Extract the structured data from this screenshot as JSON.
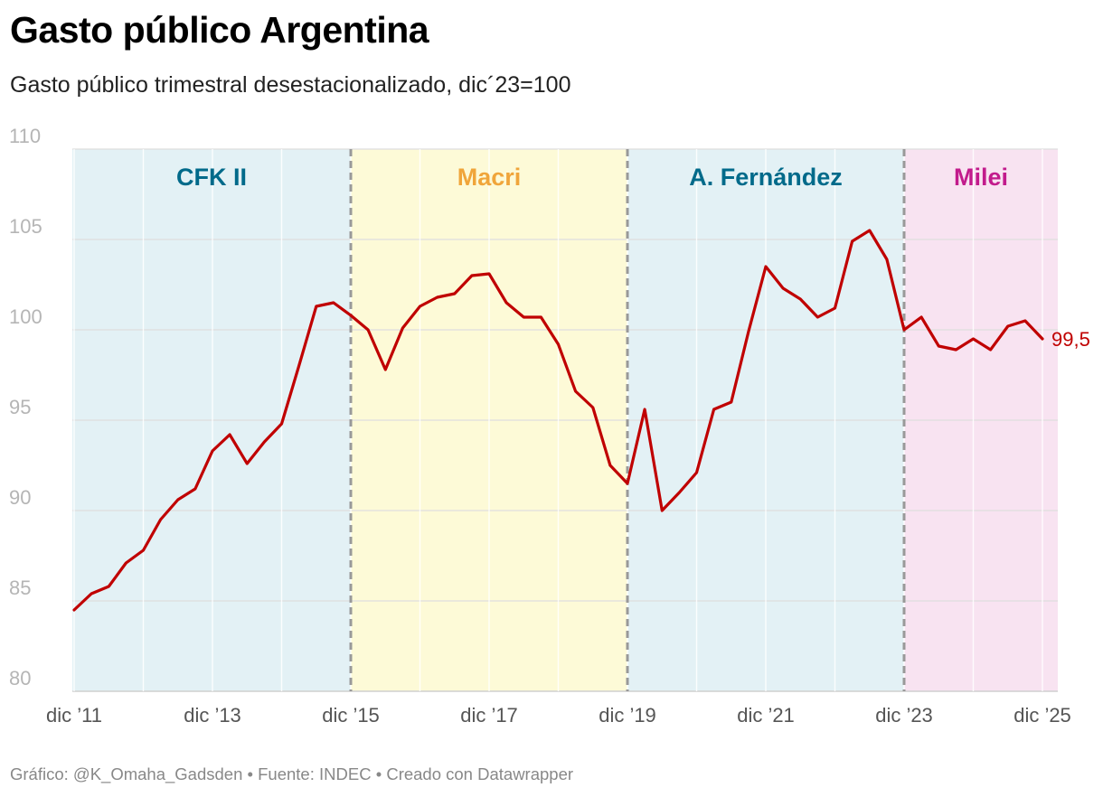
{
  "title": "Gasto público Argentina",
  "subtitle": "Gasto público trimestral desestacionalizado, dic´23=100",
  "footer": {
    "chart_credit": "Gráfico: @K_Omaha_Gadsden",
    "separator": "•",
    "source": "Fuente: INDEC",
    "tool": "Creado con Datawrapper"
  },
  "colors": {
    "line": "#c00000",
    "band_blue": "#e3f1f5",
    "band_yellow": "#fdfad7",
    "band_pink": "#f8e3f1",
    "label_blue": "#006a8a",
    "label_yellow": "#f0a53a",
    "label_pink": "#c21b8c"
  },
  "chart_data": {
    "type": "line",
    "ylim": [
      80,
      110
    ],
    "yticks": [
      80,
      85,
      90,
      95,
      100,
      105,
      110
    ],
    "xlim": [
      2011.75,
      2026.0
    ],
    "xticks": [
      {
        "x": 2011.75,
        "label": "dic ’11"
      },
      {
        "x": 2013.75,
        "label": "dic ’13"
      },
      {
        "x": 2015.75,
        "label": "dic ’15"
      },
      {
        "x": 2017.75,
        "label": "dic ’17"
      },
      {
        "x": 2019.75,
        "label": "dic ’19"
      },
      {
        "x": 2021.75,
        "label": "dic ’21"
      },
      {
        "x": 2023.75,
        "label": "dic ’23"
      },
      {
        "x": 2025.75,
        "label": "dic ’25"
      }
    ],
    "grid": true,
    "periods": [
      {
        "name": "CFK II",
        "start": 2011.75,
        "end": 2015.75,
        "color": "blue"
      },
      {
        "name": "Macri",
        "start": 2015.75,
        "end": 2019.75,
        "color": "yellow"
      },
      {
        "name": "A. Fernández",
        "start": 2019.75,
        "end": 2023.75,
        "color": "blue"
      },
      {
        "name": "Milei",
        "start": 2023.75,
        "end": 2026.0,
        "color": "pink"
      }
    ],
    "end_label": "99,5",
    "series": [
      {
        "x": [
          2011.75,
          2012.0,
          2012.25,
          2012.5,
          2012.75,
          2013.0,
          2013.25,
          2013.5,
          2013.75,
          2014.0,
          2014.25,
          2014.5,
          2014.75,
          2015.0,
          2015.25,
          2015.5,
          2015.75,
          2016.0,
          2016.25,
          2016.5,
          2016.75,
          2017.0,
          2017.25,
          2017.5,
          2017.75,
          2018.0,
          2018.25,
          2018.5,
          2018.75,
          2019.0,
          2019.25,
          2019.5,
          2019.75,
          2020.0,
          2020.25,
          2020.5,
          2020.75,
          2021.0,
          2021.25,
          2021.5,
          2021.75,
          2022.0,
          2022.25,
          2022.5,
          2022.75,
          2023.0,
          2023.25,
          2023.5,
          2023.75,
          2024.0,
          2024.25,
          2024.5,
          2024.75,
          2025.0,
          2025.25,
          2025.5,
          2025.75
        ],
        "values": [
          84.5,
          85.4,
          85.8,
          87.1,
          87.8,
          89.5,
          90.6,
          91.2,
          93.3,
          94.2,
          92.6,
          93.8,
          94.8,
          98.0,
          101.3,
          101.5,
          100.8,
          100.0,
          97.8,
          100.1,
          101.3,
          101.8,
          102.0,
          103.0,
          103.1,
          101.5,
          100.7,
          100.7,
          99.2,
          96.6,
          95.7,
          92.5,
          91.5,
          95.6,
          90.0,
          91.0,
          92.1,
          95.6,
          96.0,
          99.9,
          103.5,
          102.3,
          101.7,
          100.7,
          101.2,
          104.9,
          105.5,
          103.9,
          100.0,
          100.7,
          99.1,
          98.9,
          99.5,
          98.9,
          100.2,
          100.5,
          99.5
        ]
      }
    ]
  }
}
